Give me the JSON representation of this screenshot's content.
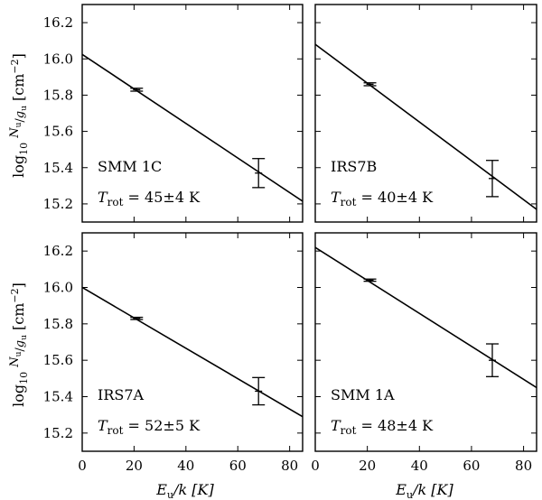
{
  "chart_data": [
    {
      "type": "scatter",
      "source": "SMM 1C",
      "rotation_temperature_label": "45±4 K",
      "fit": {
        "x": [
          0,
          85
        ],
        "y": [
          16.025,
          15.215
        ]
      },
      "points": [
        {
          "x": 21,
          "y": 15.83,
          "yerr": 0.008
        },
        {
          "x": 68,
          "y": 15.37,
          "yerr": 0.08
        }
      ]
    },
    {
      "type": "scatter",
      "source": "IRS7B",
      "rotation_temperature_label": "40±4 K",
      "fit": {
        "x": [
          0,
          85
        ],
        "y": [
          16.08,
          15.17
        ]
      },
      "points": [
        {
          "x": 21,
          "y": 15.86,
          "yerr": 0.008
        },
        {
          "x": 68,
          "y": 15.34,
          "yerr": 0.1
        }
      ]
    },
    {
      "type": "scatter",
      "source": "IRS7A",
      "rotation_temperature_label": "52±5 K",
      "fit": {
        "x": [
          0,
          85
        ],
        "y": [
          16.0,
          15.29
        ]
      },
      "points": [
        {
          "x": 21,
          "y": 15.83,
          "yerr": 0.006
        },
        {
          "x": 68,
          "y": 15.43,
          "yerr": 0.075
        }
      ]
    },
    {
      "type": "scatter",
      "source": "SMM 1A",
      "rotation_temperature_label": "48±4 K",
      "fit": {
        "x": [
          0,
          85
        ],
        "y": [
          16.22,
          15.45
        ]
      },
      "points": [
        {
          "x": 21,
          "y": 16.04,
          "yerr": 0.006
        },
        {
          "x": 68,
          "y": 15.6,
          "yerr": 0.09
        }
      ]
    }
  ],
  "axes": {
    "xlim": [
      0,
      85
    ],
    "ylim": [
      15.1,
      16.3
    ],
    "xticks": [
      0,
      20,
      40,
      60,
      80
    ],
    "yticks": [
      15.2,
      15.4,
      15.6,
      15.8,
      16.0,
      16.2
    ],
    "xlabel_main": "E",
    "xlabel_sub": "u",
    "xlabel_rest": "/k [K]",
    "ylabel_prefix": "log",
    "ylabel_base": "10",
    "ylabel_num": "N",
    "ylabel_den": "g",
    "ylabel_sub": "u",
    "ylabel_unit": "cm",
    "ylabel_exp": "−2",
    "trot_label": "T",
    "trot_sub": "rot"
  }
}
